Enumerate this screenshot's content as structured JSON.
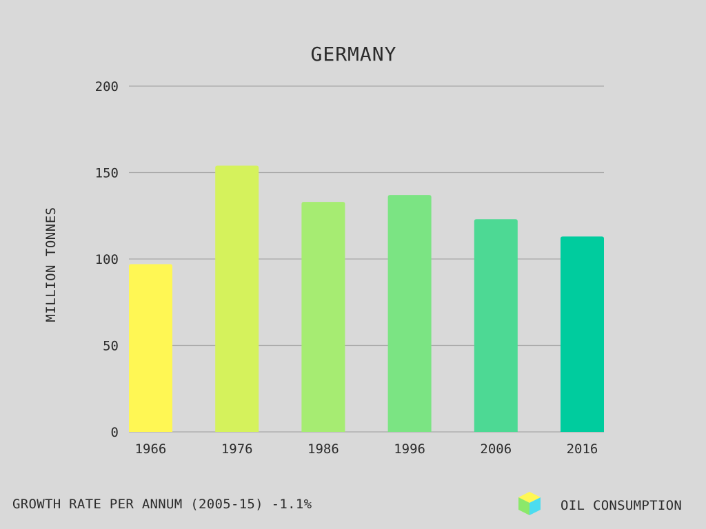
{
  "chart_data": {
    "type": "bar",
    "title": "GERMANY",
    "categories": [
      "1966",
      "1976",
      "1986",
      "1996",
      "2006",
      "2016"
    ],
    "series": [
      {
        "name": "OIL CONSUMPTION",
        "values": [
          97,
          154,
          133,
          137,
          123,
          113
        ]
      }
    ],
    "bar_colors": [
      "#fff754",
      "#d5f25c",
      "#a6ec72",
      "#7be483",
      "#4dd994",
      "#00cc9e"
    ],
    "xlabel": "",
    "ylabel": "MILLION TONNES",
    "ylim": [
      0,
      200
    ],
    "yticks": [
      0,
      50,
      100,
      150,
      200
    ],
    "grid": true,
    "legend": {
      "label": "OIL CONSUMPTION",
      "position": "bottom-right"
    },
    "footnote": "GROWTH RATE PER ANNUM (2005-15) -1.1%"
  }
}
